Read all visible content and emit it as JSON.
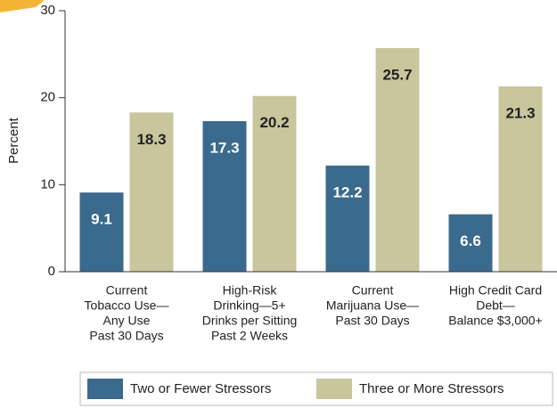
{
  "chart_data": {
    "type": "bar",
    "y_label": "Percent",
    "categories": [
      [
        "Current",
        "Tobacco Use—",
        "Any Use",
        "Past 30 Days"
      ],
      [
        "High-Risk",
        "Drinking—5+",
        "Drinks per Sitting",
        "Past 2 Weeks"
      ],
      [
        "Current",
        "Marijuana Use—",
        "Past 30 Days"
      ],
      [
        "High Credit Card",
        "Debt—",
        "Balance $3,000+"
      ]
    ],
    "series": [
      {
        "name": "Two or Fewer Stressors",
        "color": "#3a6a8d",
        "values": [
          9.1,
          17.3,
          12.2,
          6.6
        ]
      },
      {
        "name": "Three or More Stressors",
        "color": "#c9c59c",
        "values": [
          18.3,
          20.2,
          25.7,
          21.3
        ]
      }
    ],
    "ylim": [
      0,
      30
    ],
    "yticks": [
      0,
      10,
      20,
      30
    ]
  }
}
